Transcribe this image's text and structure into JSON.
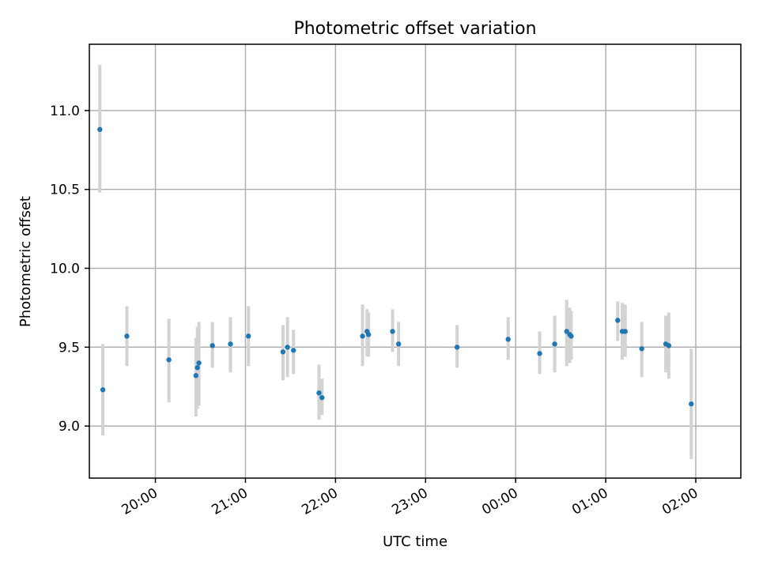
{
  "chart_data": {
    "type": "scatter",
    "title": "Photometric offset variation",
    "xlabel": "UTC time",
    "ylabel": "Photometric offset",
    "x_unit": "UTC time",
    "xlim": [
      "19:16",
      "02:30"
    ],
    "ylim": [
      8.67,
      11.42
    ],
    "x_ticks": [
      "20:00",
      "21:00",
      "22:00",
      "23:00",
      "00:00",
      "01:00",
      "02:00"
    ],
    "y_ticks": [
      "9.0",
      "9.5",
      "10.0",
      "10.5",
      "11.0"
    ],
    "x_tick_label_rotation": "30 degrees",
    "grid": true,
    "marker_color": "#1f77b4",
    "errorbar_color": "#d3d3d3",
    "points": [
      {
        "x": "19:23",
        "y": 10.88,
        "err_low": 10.48,
        "err_high": 11.29
      },
      {
        "x": "19:25",
        "y": 9.23,
        "err_low": 8.94,
        "err_high": 9.52
      },
      {
        "x": "19:41",
        "y": 9.57,
        "err_low": 9.38,
        "err_high": 9.76
      },
      {
        "x": "20:09",
        "y": 9.42,
        "err_low": 9.15,
        "err_high": 9.68
      },
      {
        "x": "20:27",
        "y": 9.32,
        "err_low": 9.06,
        "err_high": 9.56
      },
      {
        "x": "20:28",
        "y": 9.37,
        "err_low": 9.11,
        "err_high": 9.63
      },
      {
        "x": "20:29",
        "y": 9.4,
        "err_low": 9.13,
        "err_high": 9.66
      },
      {
        "x": "20:38",
        "y": 9.51,
        "err_low": 9.37,
        "err_high": 9.66
      },
      {
        "x": "20:50",
        "y": 9.52,
        "err_low": 9.34,
        "err_high": 9.69
      },
      {
        "x": "21:02",
        "y": 9.57,
        "err_low": 9.38,
        "err_high": 9.76
      },
      {
        "x": "21:25",
        "y": 9.47,
        "err_low": 9.29,
        "err_high": 9.64
      },
      {
        "x": "21:28",
        "y": 9.5,
        "err_low": 9.31,
        "err_high": 9.69
      },
      {
        "x": "21:32",
        "y": 9.48,
        "err_low": 9.33,
        "err_high": 9.61
      },
      {
        "x": "21:49",
        "y": 9.21,
        "err_low": 9.04,
        "err_high": 9.39
      },
      {
        "x": "21:51",
        "y": 9.18,
        "err_low": 9.07,
        "err_high": 9.3
      },
      {
        "x": "22:18",
        "y": 9.57,
        "err_low": 9.38,
        "err_high": 9.77
      },
      {
        "x": "22:21",
        "y": 9.6,
        "err_low": 9.44,
        "err_high": 9.74
      },
      {
        "x": "22:22",
        "y": 9.58,
        "err_low": 9.44,
        "err_high": 9.72
      },
      {
        "x": "22:38",
        "y": 9.6,
        "err_low": 9.47,
        "err_high": 9.74
      },
      {
        "x": "22:42",
        "y": 9.52,
        "err_low": 9.38,
        "err_high": 9.66
      },
      {
        "x": "23:21",
        "y": 9.5,
        "err_low": 9.37,
        "err_high": 9.64
      },
      {
        "x": "23:55",
        "y": 9.55,
        "err_low": 9.42,
        "err_high": 9.69
      },
      {
        "x": "00:16",
        "y": 9.46,
        "err_low": 9.33,
        "err_high": 9.6
      },
      {
        "x": "00:26",
        "y": 9.52,
        "err_low": 9.34,
        "err_high": 9.7
      },
      {
        "x": "00:34",
        "y": 9.6,
        "err_low": 9.38,
        "err_high": 9.8
      },
      {
        "x": "00:36",
        "y": 9.58,
        "err_low": 9.4,
        "err_high": 9.75
      },
      {
        "x": "00:37",
        "y": 9.57,
        "err_low": 9.42,
        "err_high": 9.73
      },
      {
        "x": "01:08",
        "y": 9.67,
        "err_low": 9.54,
        "err_high": 9.79
      },
      {
        "x": "01:11",
        "y": 9.6,
        "err_low": 9.42,
        "err_high": 9.78
      },
      {
        "x": "01:13",
        "y": 9.6,
        "err_low": 9.44,
        "err_high": 9.77
      },
      {
        "x": "01:24",
        "y": 9.49,
        "err_low": 9.31,
        "err_high": 9.66
      },
      {
        "x": "01:40",
        "y": 9.52,
        "err_low": 9.34,
        "err_high": 9.7
      },
      {
        "x": "01:42",
        "y": 9.51,
        "err_low": 9.3,
        "err_high": 9.72
      },
      {
        "x": "01:57",
        "y": 9.14,
        "err_low": 8.79,
        "err_high": 9.49
      }
    ]
  }
}
